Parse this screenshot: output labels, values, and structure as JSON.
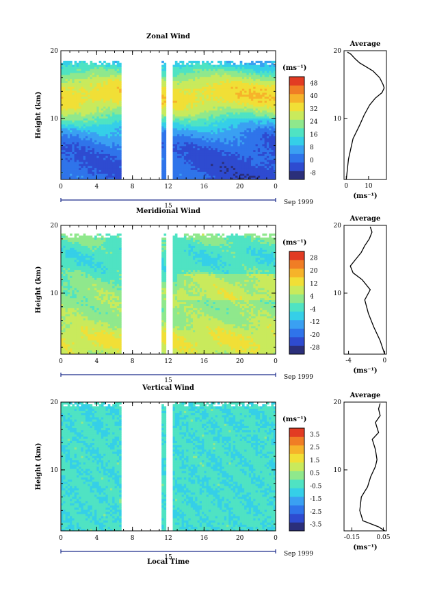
{
  "figure": {
    "x_axis_label": "Local Time",
    "date_label": "Sep 1999",
    "day_label": "15",
    "unit_label": "(ms⁻¹)"
  },
  "colormap": [
    "#2b2f7a",
    "#2e4bd0",
    "#2f74ea",
    "#3aa0f2",
    "#35cfe8",
    "#4fe3c3",
    "#8fe88c",
    "#c9ea5c",
    "#f1df36",
    "#f6b32a",
    "#f07d25",
    "#e23b23"
  ],
  "chart_data": [
    {
      "type": "heatmap",
      "title": "Zonal Wind",
      "ylabel": "Height (km)",
      "xlabel": "Local Time",
      "x_range": [
        0,
        24
      ],
      "y_range": [
        1,
        20
      ],
      "x_ticks": [
        "0",
        "4",
        "8",
        "12",
        "16",
        "20",
        "0"
      ],
      "y_ticks": [
        "20",
        "10"
      ],
      "data_gaps_hours": [
        [
          6.7,
          11.3
        ],
        [
          11.7,
          12.4
        ]
      ],
      "top_of_data_km": 18.5,
      "colorbar": {
        "label": "(ms⁻¹)",
        "ticks": [
          "48",
          "40",
          "32",
          "24",
          "16",
          "8",
          "0",
          "-8"
        ],
        "range": [
          -8,
          50
        ]
      },
      "profile_x": [
        [
          0,
          1
        ],
        [
          1,
          4
        ],
        [
          3,
          7
        ],
        [
          6,
          9
        ],
        [
          8,
          10.5
        ],
        [
          10.5,
          12
        ],
        [
          13,
          13
        ],
        [
          16,
          13.8
        ],
        [
          17,
          14.5
        ],
        [
          16.5,
          15
        ],
        [
          15,
          16
        ],
        [
          12,
          17
        ],
        [
          9,
          17.6
        ],
        [
          6,
          18.2
        ],
        [
          4,
          18.8
        ],
        [
          2,
          19.5
        ],
        [
          0.5,
          19.8
        ]
      ],
      "profile": {
        "title": "Average",
        "xlabel": "(ms⁻¹)",
        "x_ticks": [
          "0",
          "10"
        ],
        "y_ticks": [
          "20",
          "10"
        ],
        "x_range": [
          -1,
          18
        ],
        "points": [
          [
            0,
            1
          ],
          [
            1,
            4
          ],
          [
            3,
            7
          ],
          [
            6,
            9
          ],
          [
            8,
            10.5
          ],
          [
            10.5,
            12
          ],
          [
            13,
            13
          ],
          [
            16,
            13.8
          ],
          [
            17,
            14.5
          ],
          [
            16.5,
            15
          ],
          [
            15,
            16
          ],
          [
            12,
            17
          ],
          [
            9,
            17.6
          ],
          [
            6,
            18.2
          ],
          [
            4,
            18.8
          ],
          [
            2,
            19.5
          ],
          [
            0.5,
            19.8
          ]
        ]
      }
    },
    {
      "type": "heatmap",
      "title": "Meridional Wind",
      "ylabel": "Height (km)",
      "xlabel": "Local Time",
      "x_range": [
        0,
        24
      ],
      "y_range": [
        1,
        20
      ],
      "x_ticks": [
        "0",
        "4",
        "8",
        "12",
        "16",
        "20",
        "0"
      ],
      "y_ticks": [
        "20",
        "10"
      ],
      "data_gaps_hours": [
        [
          6.7,
          11.3
        ],
        [
          11.7,
          12.4
        ]
      ],
      "top_of_data_km": 18.8,
      "colorbar": {
        "label": "(ms⁻¹)",
        "ticks": [
          "28",
          "20",
          "12",
          "4",
          "-4",
          "-12",
          "-20",
          "-28"
        ],
        "range": [
          -30,
          30
        ]
      },
      "profile": {
        "title": "Average",
        "xlabel": "(ms⁻¹)",
        "x_ticks": [
          "-4",
          "0"
        ],
        "y_ticks": [
          "20",
          "10"
        ],
        "x_range": [
          -4.5,
          0.2
        ],
        "points": [
          [
            0,
            1
          ],
          [
            -0.5,
            3
          ],
          [
            -1.2,
            5
          ],
          [
            -1.8,
            7
          ],
          [
            -2.2,
            9
          ],
          [
            -1.6,
            10.5
          ],
          [
            -2.5,
            12
          ],
          [
            -3.5,
            13
          ],
          [
            -3.8,
            14
          ],
          [
            -3.2,
            15
          ],
          [
            -2.6,
            16
          ],
          [
            -2.2,
            17
          ],
          [
            -1.7,
            18
          ],
          [
            -1.4,
            19
          ],
          [
            -1.6,
            19.8
          ]
        ]
      }
    },
    {
      "type": "heatmap",
      "title": "Vertical Wind",
      "ylabel": "Height (km)",
      "xlabel": "Local Time",
      "x_range": [
        0,
        24
      ],
      "y_range": [
        1,
        20
      ],
      "x_ticks": [
        "0",
        "4",
        "8",
        "12",
        "16",
        "20",
        "0"
      ],
      "y_ticks": [
        "20",
        "10"
      ],
      "data_gaps_hours": [
        [
          6.7,
          11.3
        ],
        [
          11.7,
          12.4
        ]
      ],
      "top_of_data_km": 20,
      "colorbar": {
        "label": "(ms⁻¹)",
        "ticks": [
          "3.5",
          "2.5",
          "1.5",
          "0.5",
          "-0.5",
          "-1.5",
          "-2.5",
          "-3.5"
        ],
        "range": [
          -4,
          4
        ]
      },
      "profile": {
        "title": "Average",
        "xlabel": "(ms⁻¹)",
        "x_ticks": [
          "-0.15",
          "0.05"
        ],
        "y_ticks": [
          "20",
          "10"
        ],
        "x_range": [
          -0.2,
          0.07
        ],
        "points": [
          [
            0.06,
            1
          ],
          [
            0.02,
            1.6
          ],
          [
            -0.08,
            2.5
          ],
          [
            -0.1,
            4
          ],
          [
            -0.09,
            6
          ],
          [
            -0.05,
            7.5
          ],
          [
            -0.03,
            9
          ],
          [
            0,
            10.5
          ],
          [
            0.01,
            11.5
          ],
          [
            0,
            13
          ],
          [
            -0.02,
            14.5
          ],
          [
            0.02,
            15.5
          ],
          [
            0,
            17
          ],
          [
            0.03,
            18
          ],
          [
            0.02,
            19
          ],
          [
            0.03,
            19.8
          ]
        ]
      }
    }
  ]
}
